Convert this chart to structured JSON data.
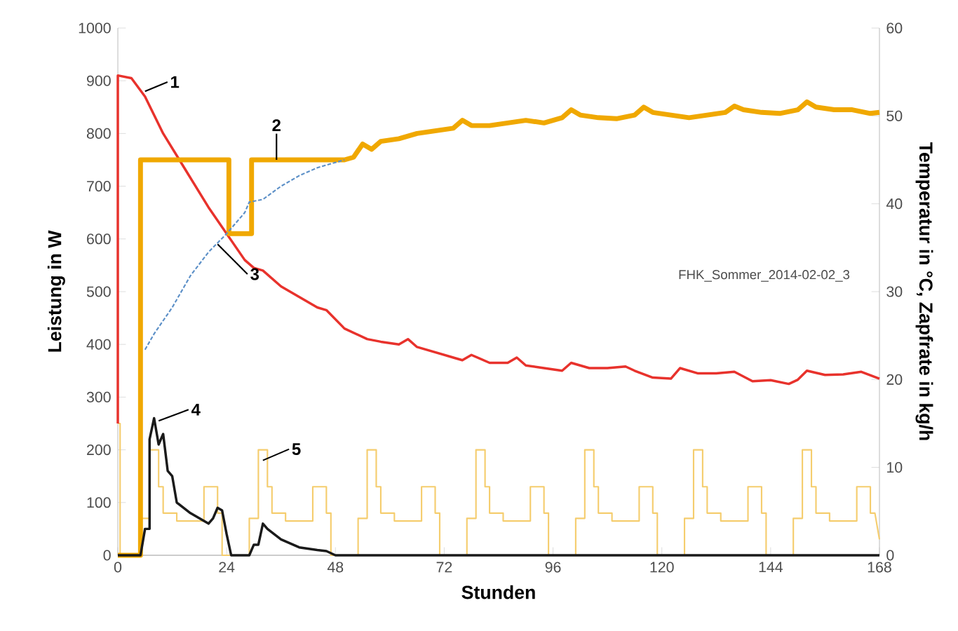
{
  "chart_data": {
    "type": "line",
    "xlabel": "Stunden",
    "ylabel": "Leistung in W",
    "y2label": "Temperatur in °C, Zapfrate in kg/h",
    "xlim": [
      0,
      168
    ],
    "xticks": [
      0,
      24,
      48,
      72,
      96,
      120,
      144,
      168
    ],
    "ylim": [
      0,
      1000
    ],
    "yticks": [
      0,
      100,
      200,
      300,
      400,
      500,
      600,
      700,
      800,
      900,
      1000
    ],
    "y2lim": [
      0,
      60
    ],
    "y2ticks": [
      0,
      10,
      20,
      30,
      40,
      50,
      60
    ],
    "series": [
      {
        "color": "#e8322c",
        "x": [
          0,
          0,
          3,
          6,
          10,
          15,
          20,
          24,
          28,
          30,
          32,
          36,
          40,
          44,
          46,
          50,
          55,
          58,
          62,
          64,
          66,
          70,
          74,
          76,
          78,
          82,
          86,
          88,
          90,
          94,
          98,
          100,
          104,
          108,
          112,
          114,
          118,
          122,
          124,
          128,
          132,
          136,
          140,
          144,
          148,
          150,
          152,
          156,
          160,
          164,
          168
        ],
        "values": [
          250,
          910,
          905,
          870,
          800,
          730,
          660,
          610,
          560,
          545,
          540,
          510,
          490,
          470,
          465,
          430,
          410,
          405,
          400,
          410,
          395,
          385,
          375,
          370,
          380,
          365,
          365,
          375,
          360,
          355,
          350,
          365,
          355,
          355,
          358,
          350,
          337,
          335,
          355,
          345,
          345,
          348,
          330,
          332,
          325,
          333,
          350,
          342,
          343,
          348,
          335
        ]
      },
      {
        "color": "#f0a800",
        "x": [
          0,
          5,
          5,
          24.5,
          24.5,
          29.5,
          29.5,
          50,
          52,
          54,
          56,
          58,
          62,
          66,
          70,
          74,
          76,
          78,
          82,
          86,
          90,
          94,
          98,
          100,
          102,
          106,
          110,
          114,
          116,
          118,
          122,
          126,
          130,
          134,
          136,
          138,
          142,
          146,
          150,
          152,
          154,
          158,
          162,
          166,
          168
        ],
        "values": [
          0,
          0,
          750,
          750,
          610,
          610,
          750,
          750,
          755,
          780,
          770,
          785,
          790,
          800,
          805,
          810,
          825,
          815,
          815,
          820,
          825,
          820,
          830,
          845,
          835,
          830,
          828,
          835,
          850,
          840,
          835,
          830,
          835,
          840,
          852,
          845,
          840,
          838,
          845,
          860,
          850,
          845,
          845,
          838,
          840
        ]
      },
      {
        "color": "#5b8fc7",
        "line_style": "dashed",
        "x": [
          6,
          8,
          12,
          16,
          20,
          24,
          28,
          29,
          32,
          36,
          40,
          44,
          48,
          50
        ],
        "values": [
          390,
          420,
          470,
          530,
          575,
          610,
          650,
          670,
          675,
          700,
          720,
          735,
          745,
          750
        ]
      },
      {
        "color": "#1a1a1a",
        "x": [
          0,
          5,
          6,
          7,
          7,
          8,
          9,
          10,
          11,
          12,
          13,
          16,
          20,
          21,
          22,
          23,
          24,
          25,
          29,
          30,
          31,
          32,
          33,
          36,
          40,
          44,
          46,
          48,
          168
        ],
        "values": [
          0,
          0,
          50,
          50,
          220,
          260,
          210,
          230,
          160,
          150,
          100,
          80,
          60,
          70,
          90,
          85,
          40,
          0,
          0,
          20,
          20,
          60,
          50,
          30,
          15,
          10,
          8,
          0,
          0
        ]
      },
      {
        "color": "#f5cd6e",
        "x": [
          0,
          0.5,
          0.5,
          5,
          5,
          7,
          7,
          9,
          9,
          10,
          10,
          13,
          13,
          19,
          19,
          22,
          22,
          23,
          23,
          29,
          29,
          31,
          31,
          33,
          33,
          34,
          34,
          37,
          37,
          43,
          43,
          46,
          46,
          47,
          47,
          53,
          53,
          55,
          55,
          57,
          57,
          58,
          58,
          61,
          61,
          67,
          67,
          70,
          70,
          71,
          71,
          77,
          77,
          79,
          79,
          81,
          81,
          82,
          82,
          85,
          85,
          91,
          91,
          94,
          94,
          95,
          95,
          101,
          101,
          103,
          103,
          105,
          105,
          106,
          106,
          109,
          109,
          115,
          115,
          118,
          118,
          119,
          119,
          125,
          125,
          127,
          127,
          129,
          129,
          130,
          130,
          133,
          133,
          139,
          139,
          142,
          142,
          143,
          143,
          149,
          149,
          151,
          151,
          153,
          153,
          154,
          154,
          157,
          157,
          163,
          163,
          166,
          166,
          167,
          168
        ],
        "values": [
          250,
          250,
          0,
          0,
          70,
          70,
          200,
          200,
          130,
          130,
          80,
          80,
          65,
          65,
          130,
          130,
          80,
          80,
          0,
          0,
          70,
          70,
          200,
          200,
          130,
          130,
          80,
          80,
          65,
          65,
          130,
          130,
          80,
          80,
          0,
          0,
          70,
          70,
          200,
          200,
          130,
          130,
          80,
          80,
          65,
          65,
          130,
          130,
          80,
          80,
          0,
          0,
          70,
          70,
          200,
          200,
          130,
          130,
          80,
          80,
          65,
          65,
          130,
          130,
          80,
          80,
          0,
          0,
          70,
          70,
          200,
          200,
          130,
          130,
          80,
          80,
          65,
          65,
          130,
          130,
          80,
          80,
          0,
          0,
          70,
          70,
          200,
          200,
          130,
          130,
          80,
          80,
          65,
          65,
          130,
          130,
          80,
          80,
          0,
          0,
          70,
          70,
          200,
          200,
          130,
          130,
          80,
          80,
          65,
          65,
          130,
          130,
          80,
          80,
          30
        ]
      }
    ],
    "annotations": [
      {
        "text": "1",
        "x": 6,
        "y": 880
      },
      {
        "text": "2",
        "x": 35,
        "y": 750
      },
      {
        "text": "3",
        "x": 22,
        "y": 590
      },
      {
        "text": "4",
        "x": 9,
        "y": 255
      },
      {
        "text": "5",
        "x": 32,
        "y": 180
      },
      "FHK_Sommer_2014-02-02_3"
    ]
  }
}
